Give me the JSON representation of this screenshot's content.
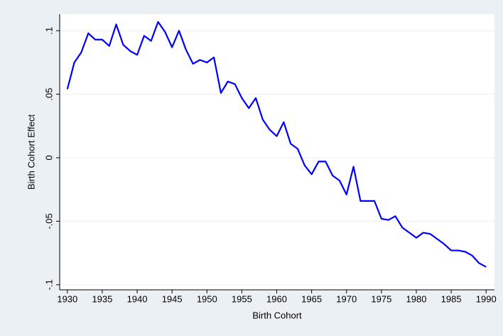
{
  "chart_data": {
    "type": "line",
    "x_label": "Birth Cohort",
    "y_label": "Birth Cohort Effect",
    "x": [
      1930,
      1931,
      1932,
      1933,
      1934,
      1935,
      1936,
      1937,
      1938,
      1939,
      1940,
      1941,
      1942,
      1943,
      1944,
      1945,
      1946,
      1947,
      1948,
      1949,
      1950,
      1951,
      1952,
      1953,
      1954,
      1955,
      1956,
      1957,
      1958,
      1959,
      1960,
      1961,
      1962,
      1963,
      1964,
      1965,
      1966,
      1967,
      1968,
      1969,
      1970,
      1971,
      1972,
      1973,
      1974,
      1975,
      1976,
      1977,
      1978,
      1979,
      1980,
      1981,
      1982,
      1983,
      1984,
      1985,
      1986,
      1987,
      1988,
      1989,
      1990
    ],
    "values": [
      0.054,
      0.075,
      0.083,
      0.098,
      0.093,
      0.093,
      0.088,
      0.105,
      0.089,
      0.084,
      0.081,
      0.096,
      0.092,
      0.107,
      0.099,
      0.087,
      0.1,
      0.085,
      0.074,
      0.077,
      0.075,
      0.079,
      0.051,
      0.06,
      0.058,
      0.047,
      0.039,
      0.047,
      0.03,
      0.022,
      0.017,
      0.028,
      0.011,
      0.007,
      -0.006,
      -0.013,
      -0.003,
      -0.003,
      -0.014,
      -0.018,
      -0.029,
      -0.007,
      -0.034,
      -0.034,
      -0.034,
      -0.048,
      -0.049,
      -0.046,
      -0.055,
      -0.059,
      -0.063,
      -0.059,
      -0.06,
      -0.064,
      -0.068,
      -0.073,
      -0.073,
      -0.074,
      -0.077,
      -0.083,
      -0.086
    ],
    "color": "#0000ff",
    "xlim": [
      1928.9,
      1991.2
    ],
    "xticks": [
      1930,
      1935,
      1940,
      1945,
      1950,
      1955,
      1960,
      1965,
      1970,
      1975,
      1980,
      1985,
      1990
    ],
    "ylim": [
      -0.104,
      0.113
    ],
    "yticks": [
      {
        "value": -0.1,
        "label": "-.1"
      },
      {
        "value": -0.05,
        "label": "-.05"
      },
      0,
      {
        "value": 0.05,
        "label": ".05"
      },
      {
        "value": 0.1,
        "label": ".1"
      }
    ],
    "grid": true
  }
}
